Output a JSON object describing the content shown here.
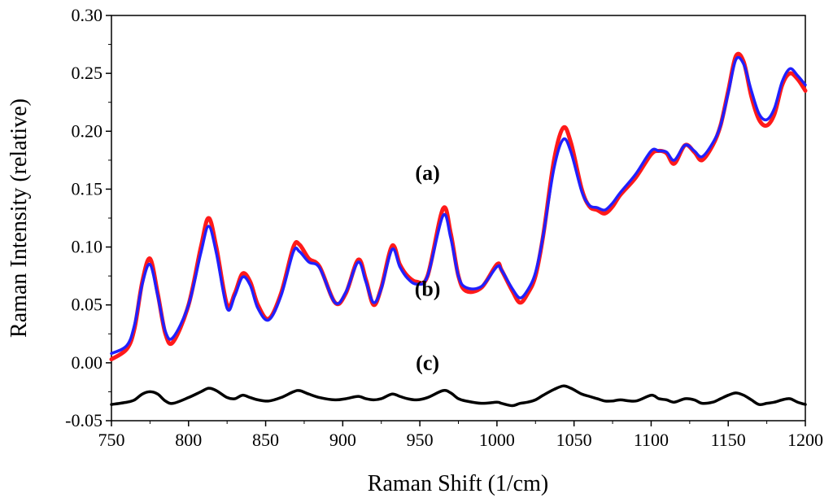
{
  "chart_data": {
    "type": "line",
    "title": "",
    "xlabel": "Raman Shift (1/cm)",
    "ylabel": "Raman Intensity (relative)",
    "xlim": [
      750,
      1200
    ],
    "ylim": [
      -0.05,
      0.3
    ],
    "x_ticks": [
      750,
      800,
      850,
      900,
      950,
      1000,
      1050,
      1100,
      1150,
      1200
    ],
    "x_tick_labels": [
      "750",
      "800",
      "850",
      "900",
      "950",
      "1000",
      "1050",
      "1100",
      "1150",
      "1200"
    ],
    "y_ticks": [
      -0.05,
      0.0,
      0.05,
      0.1,
      0.15,
      0.2,
      0.25,
      0.3
    ],
    "y_tick_labels": [
      "-0.05",
      "0.00",
      "0.05",
      "0.10",
      "0.15",
      "0.20",
      "0.25",
      "0.30"
    ],
    "grid": false,
    "series": [
      {
        "name": "(a)",
        "color": "#ff1a1a",
        "x": [
          750,
          760,
          765,
          770,
          775,
          780,
          785,
          790,
          800,
          808,
          813,
          818,
          825,
          830,
          835,
          840,
          845,
          852,
          860,
          868,
          872,
          878,
          885,
          895,
          902,
          910,
          915,
          920,
          925,
          932,
          937,
          942,
          948,
          955,
          965,
          970,
          975,
          980,
          990,
          1000,
          1003,
          1010,
          1015,
          1020,
          1025,
          1030,
          1037,
          1043,
          1048,
          1055,
          1060,
          1065,
          1070,
          1075,
          1080,
          1090,
          1100,
          1105,
          1110,
          1115,
          1122,
          1128,
          1133,
          1140,
          1145,
          1150,
          1155,
          1160,
          1165,
          1170,
          1175,
          1180,
          1185,
          1190,
          1195,
          1200
        ],
        "values": [
          0.003,
          0.012,
          0.03,
          0.07,
          0.09,
          0.06,
          0.025,
          0.018,
          0.05,
          0.1,
          0.125,
          0.1,
          0.05,
          0.06,
          0.077,
          0.07,
          0.05,
          0.038,
          0.06,
          0.1,
          0.102,
          0.09,
          0.083,
          0.052,
          0.06,
          0.089,
          0.072,
          0.05,
          0.065,
          0.101,
          0.085,
          0.075,
          0.07,
          0.075,
          0.133,
          0.112,
          0.075,
          0.062,
          0.065,
          0.085,
          0.08,
          0.062,
          0.052,
          0.06,
          0.075,
          0.11,
          0.175,
          0.203,
          0.19,
          0.15,
          0.135,
          0.132,
          0.129,
          0.135,
          0.145,
          0.16,
          0.18,
          0.183,
          0.181,
          0.172,
          0.188,
          0.182,
          0.175,
          0.188,
          0.205,
          0.235,
          0.265,
          0.26,
          0.23,
          0.21,
          0.205,
          0.215,
          0.24,
          0.25,
          0.245,
          0.235
        ]
      },
      {
        "name": "(b)",
        "color": "#2020ff",
        "x": [
          750,
          760,
          765,
          770,
          775,
          780,
          785,
          790,
          800,
          808,
          813,
          818,
          825,
          830,
          835,
          840,
          845,
          852,
          860,
          868,
          872,
          878,
          885,
          895,
          902,
          910,
          915,
          920,
          925,
          932,
          937,
          942,
          948,
          955,
          965,
          970,
          975,
          980,
          990,
          1000,
          1003,
          1010,
          1015,
          1020,
          1025,
          1030,
          1037,
          1043,
          1048,
          1055,
          1060,
          1065,
          1070,
          1075,
          1080,
          1090,
          1100,
          1105,
          1110,
          1115,
          1122,
          1128,
          1133,
          1140,
          1145,
          1150,
          1155,
          1160,
          1165,
          1170,
          1175,
          1180,
          1185,
          1190,
          1195,
          1200
        ],
        "values": [
          0.008,
          0.015,
          0.033,
          0.068,
          0.085,
          0.058,
          0.027,
          0.022,
          0.05,
          0.095,
          0.118,
          0.095,
          0.047,
          0.058,
          0.074,
          0.067,
          0.047,
          0.037,
          0.058,
          0.096,
          0.096,
          0.087,
          0.082,
          0.052,
          0.061,
          0.087,
          0.07,
          0.052,
          0.064,
          0.098,
          0.083,
          0.073,
          0.068,
          0.075,
          0.127,
          0.108,
          0.075,
          0.065,
          0.066,
          0.083,
          0.08,
          0.064,
          0.056,
          0.063,
          0.078,
          0.11,
          0.168,
          0.193,
          0.182,
          0.148,
          0.136,
          0.134,
          0.132,
          0.138,
          0.147,
          0.163,
          0.183,
          0.183,
          0.182,
          0.175,
          0.188,
          0.183,
          0.178,
          0.19,
          0.205,
          0.233,
          0.262,
          0.258,
          0.235,
          0.215,
          0.21,
          0.22,
          0.243,
          0.254,
          0.248,
          0.24
        ]
      },
      {
        "name": "(c)",
        "color": "#000000",
        "x": [
          750,
          760,
          765,
          770,
          775,
          780,
          785,
          790,
          800,
          808,
          813,
          818,
          825,
          830,
          835,
          840,
          845,
          852,
          860,
          868,
          872,
          878,
          885,
          895,
          902,
          910,
          915,
          920,
          925,
          932,
          937,
          942,
          948,
          955,
          965,
          970,
          975,
          980,
          990,
          1000,
          1003,
          1010,
          1015,
          1020,
          1025,
          1030,
          1037,
          1043,
          1048,
          1055,
          1060,
          1065,
          1070,
          1075,
          1080,
          1090,
          1100,
          1105,
          1110,
          1115,
          1122,
          1128,
          1133,
          1140,
          1145,
          1150,
          1155,
          1160,
          1165,
          1170,
          1175,
          1180,
          1185,
          1190,
          1195,
          1200
        ],
        "values": [
          -0.036,
          -0.034,
          -0.032,
          -0.027,
          -0.025,
          -0.027,
          -0.033,
          -0.035,
          -0.03,
          -0.025,
          -0.022,
          -0.024,
          -0.03,
          -0.031,
          -0.028,
          -0.03,
          -0.032,
          -0.033,
          -0.03,
          -0.025,
          -0.024,
          -0.027,
          -0.03,
          -0.032,
          -0.031,
          -0.029,
          -0.031,
          -0.032,
          -0.031,
          -0.027,
          -0.029,
          -0.031,
          -0.032,
          -0.03,
          -0.024,
          -0.026,
          -0.031,
          -0.033,
          -0.035,
          -0.034,
          -0.035,
          -0.037,
          -0.035,
          -0.034,
          -0.032,
          -0.028,
          -0.023,
          -0.02,
          -0.022,
          -0.027,
          -0.029,
          -0.031,
          -0.033,
          -0.033,
          -0.032,
          -0.033,
          -0.028,
          -0.031,
          -0.032,
          -0.034,
          -0.031,
          -0.032,
          -0.035,
          -0.034,
          -0.031,
          -0.028,
          -0.026,
          -0.028,
          -0.032,
          -0.036,
          -0.035,
          -0.034,
          -0.032,
          -0.031,
          -0.034,
          -0.036
        ]
      }
    ],
    "annotations": [
      {
        "text": "(a)",
        "x": 955,
        "y": 0.158
      },
      {
        "text": "(b)",
        "x": 955,
        "y": 0.058
      },
      {
        "text": "(c)",
        "x": 955,
        "y": -0.006
      }
    ]
  }
}
